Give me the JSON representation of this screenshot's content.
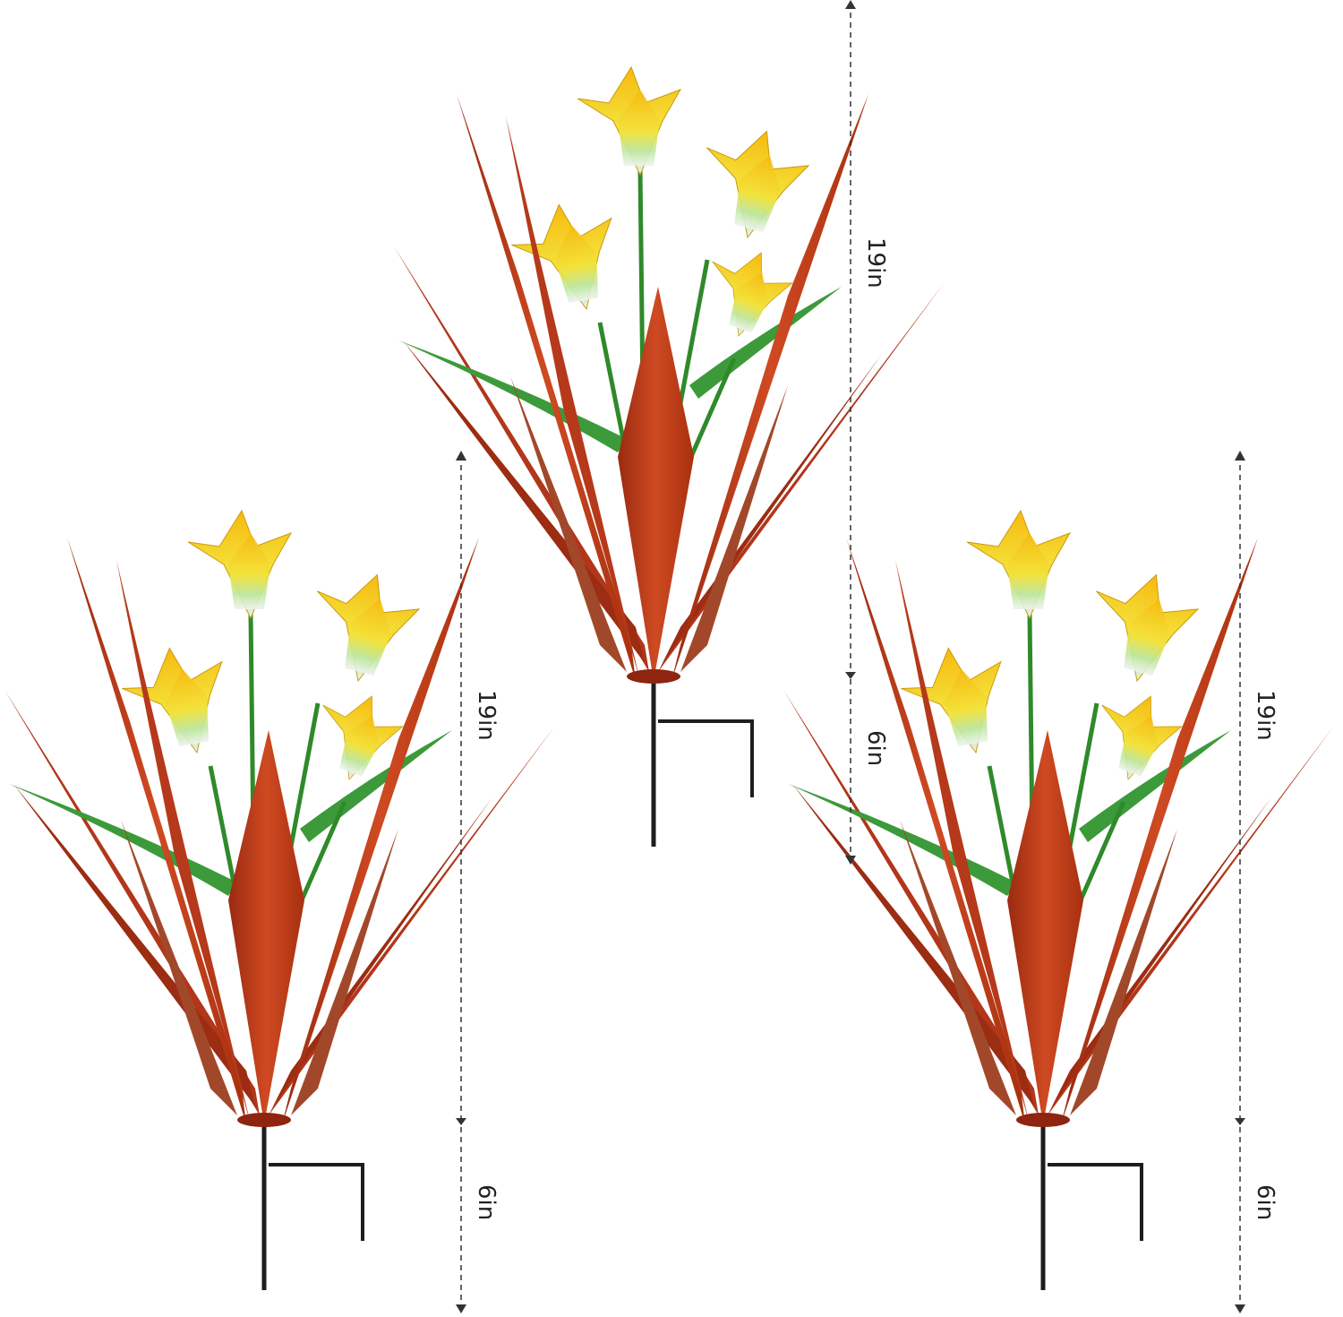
{
  "colors": {
    "leaf": "#c0391a",
    "leaf_dark": "#8f2410",
    "petal": "#f5c418",
    "petal_base": "#e8efe6",
    "stem": "#2f8a2a",
    "stake": "#1e1e1e",
    "dimension_line": "#333333"
  },
  "plants": [
    {
      "name": "left",
      "height_label": "19in",
      "stake_label": "6in"
    },
    {
      "name": "center",
      "height_label": "19in",
      "stake_label": "6in"
    },
    {
      "name": "right",
      "height_label": "19in",
      "stake_label": "6in"
    }
  ]
}
